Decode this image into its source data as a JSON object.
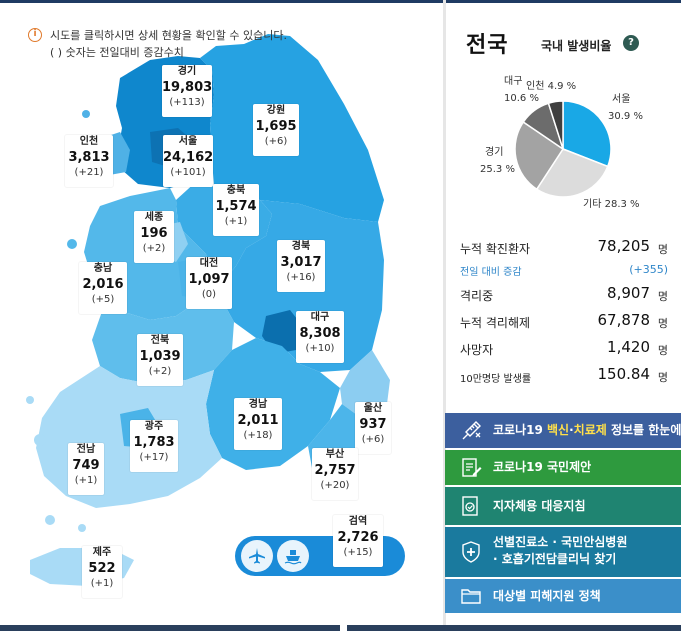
{
  "notice": {
    "info_icon": "info-circle-icon",
    "line1": "시도를 클릭하시면 상세 현황을 확인할 수 있습니다.",
    "line2": "( ) 숫자는 전일대비 증감수치"
  },
  "regions": [
    {
      "id": "gyeonggi",
      "name": "경기",
      "value": "19,803",
      "diff": "(+113)"
    },
    {
      "id": "gangwon",
      "name": "강원",
      "value": "1,695",
      "diff": "(+6)"
    },
    {
      "id": "incheon",
      "name": "인천",
      "value": "3,813",
      "diff": "(+21)"
    },
    {
      "id": "seoul",
      "name": "서울",
      "value": "24,162",
      "diff": "(+101)"
    },
    {
      "id": "chungbuk",
      "name": "충북",
      "value": "1,574",
      "diff": "(+1)"
    },
    {
      "id": "sejong",
      "name": "세종",
      "value": "196",
      "diff": "(+2)"
    },
    {
      "id": "chungnam",
      "name": "충남",
      "value": "2,016",
      "diff": "(+5)"
    },
    {
      "id": "daejeon",
      "name": "대전",
      "value": "1,097",
      "diff": "(0)"
    },
    {
      "id": "gyeongbuk",
      "name": "경북",
      "value": "3,017",
      "diff": "(+16)"
    },
    {
      "id": "jeonbuk",
      "name": "전북",
      "value": "1,039",
      "diff": "(+2)"
    },
    {
      "id": "daegu",
      "name": "대구",
      "value": "8,308",
      "diff": "(+10)"
    },
    {
      "id": "gwangju",
      "name": "광주",
      "value": "1,783",
      "diff": "(+17)"
    },
    {
      "id": "gyeongnam",
      "name": "경남",
      "value": "2,011",
      "diff": "(+18)"
    },
    {
      "id": "ulsan",
      "name": "울산",
      "value": "937",
      "diff": "(+6)"
    },
    {
      "id": "jeonnam",
      "name": "전남",
      "value": "749",
      "diff": "(+1)"
    },
    {
      "id": "busan",
      "name": "부산",
      "value": "2,757",
      "diff": "(+20)"
    },
    {
      "id": "quarantine",
      "name": "검역",
      "value": "2,726",
      "diff": "(+15)"
    },
    {
      "id": "jeju",
      "name": "제주",
      "value": "522",
      "diff": "(+1)"
    }
  ],
  "transport": {
    "airplane_icon": "airplane-icon",
    "ship_icon": "ship-icon"
  },
  "summary": {
    "title": "전국",
    "subtitle": "국내 발생비율",
    "help_icon": "question-mark-icon",
    "help_label": "?"
  },
  "chart_data": {
    "type": "pie",
    "slices": [
      {
        "label": "서울",
        "value": 30.9,
        "display": "30.9 %",
        "color": "#19a8e6"
      },
      {
        "label": "기타",
        "value": 28.3,
        "display": "28.3 %",
        "color": "#dcdcdc"
      },
      {
        "label": "경기",
        "value": 25.3,
        "display": "25.3 %",
        "color": "#a3a3a3"
      },
      {
        "label": "대구",
        "value": 10.6,
        "display": "10.6 %",
        "color": "#6c6c6c"
      },
      {
        "label": "인천",
        "value": 4.9,
        "display": "4.9 %",
        "color": "#3f3f3f"
      }
    ]
  },
  "stats": {
    "cumulative_label": "누적 확진환자",
    "cumulative_value": "78,205",
    "daily_change_label": "전일 대비 증감",
    "daily_change_value": "(+355)",
    "isolated_label": "격리중",
    "isolated_value": "8,907",
    "released_label": "누적 격리해제",
    "released_value": "67,878",
    "deaths_label": "사망자",
    "deaths_value": "1,420",
    "per100k_label": "10만명당 발생률",
    "per100k_value": "150.84",
    "unit": "명"
  },
  "links": [
    {
      "id": "vaccine",
      "pre": "코로나19 ",
      "hl1": "백신",
      "mid": "·",
      "hl2": "치료제",
      "post": " 정보를 한눈에",
      "icon": "syringe-icon",
      "color": "#3c5f9e"
    },
    {
      "id": "proposal",
      "text": "코로나19 국민제안",
      "icon": "document-edit-icon",
      "color": "#2e9a3e"
    },
    {
      "id": "local",
      "text": "지자체용 대응지침",
      "icon": "guideline-check-icon",
      "color": "#1f8471"
    },
    {
      "id": "clinic",
      "line1": "선별진료소 · 국민안심병원",
      "line2": "· 호흡기전담클리닉 찾기",
      "icon": "hospital-shield-icon",
      "color": "#1a7a9e"
    },
    {
      "id": "support",
      "text": "대상별 피해지원 정책",
      "icon": "folder-icon",
      "color": "#3b8fc9"
    }
  ]
}
